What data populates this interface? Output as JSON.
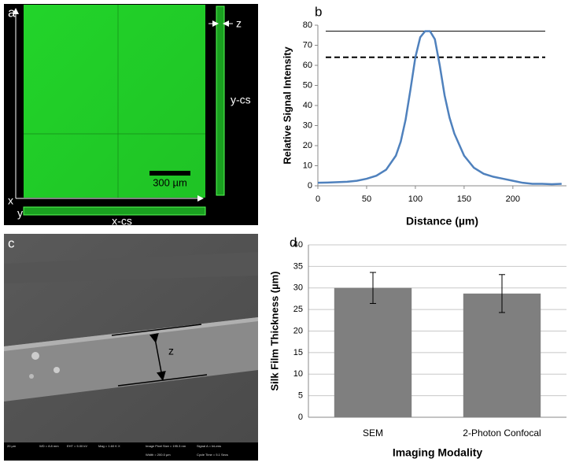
{
  "panel_a": {
    "label": "a",
    "x_axis": "x",
    "y_axis": "y",
    "x_cs": "x-cs",
    "y_cs": "y-cs",
    "z": "z",
    "scale_bar": "300 µm"
  },
  "panel_c": {
    "label": "c",
    "z": "z",
    "info": [
      "20 µm",
      "WD = 8.8 mm",
      "EHT = 5.00 kV",
      "Mag = 1.60 K X",
      "Image Pixel Size = 195.3 nm",
      "Width = 200.0 µm",
      "Signal A = InLens",
      "Cycle Time = 5.1 Secs"
    ]
  },
  "chart_data": [
    {
      "type": "line",
      "label": "b",
      "x_label": "Distance (µm)",
      "y_label": "Relative Signal Intensity",
      "x": [
        0,
        10,
        20,
        30,
        40,
        50,
        60,
        70,
        80,
        85,
        90,
        95,
        100,
        105,
        110,
        115,
        120,
        125,
        130,
        135,
        140,
        150,
        160,
        170,
        180,
        190,
        200,
        210,
        220,
        230,
        240,
        250
      ],
      "series": [
        {
          "name": "Relative Signal Intensity",
          "color": "#4f81bd",
          "values": [
            1.5,
            1.6,
            1.8,
            2,
            2.5,
            3.5,
            5,
            8,
            15,
            22,
            33,
            48,
            64,
            74,
            77,
            77,
            73,
            60,
            45,
            34,
            26,
            15,
            9,
            6,
            4.5,
            3.5,
            2.5,
            1.5,
            1,
            1,
            0.8,
            1
          ]
        }
      ],
      "reference_lines": [
        {
          "value": 77,
          "style": "solid",
          "color": "#000000"
        },
        {
          "value": 64,
          "style": "dashed",
          "color": "#000000"
        }
      ],
      "xlim": [
        0,
        255
      ],
      "xticks": [
        0,
        50,
        100,
        150,
        200
      ],
      "ylim": [
        0,
        80
      ],
      "yticks": [
        0,
        10,
        20,
        30,
        40,
        50,
        60,
        70,
        80
      ]
    },
    {
      "type": "bar",
      "label": "d",
      "x_label": "Imaging Modality",
      "y_label": "Silk Film Thickness (µm)",
      "categories": [
        "SEM",
        "2-Photon Confocal"
      ],
      "values": [
        30,
        28.7
      ],
      "errors": [
        3.6,
        4.4
      ],
      "color": "#7f7f7f",
      "ylim": [
        0,
        40
      ],
      "yticks": [
        0,
        5,
        10,
        15,
        20,
        25,
        30,
        35,
        40
      ],
      "grid": true
    }
  ]
}
